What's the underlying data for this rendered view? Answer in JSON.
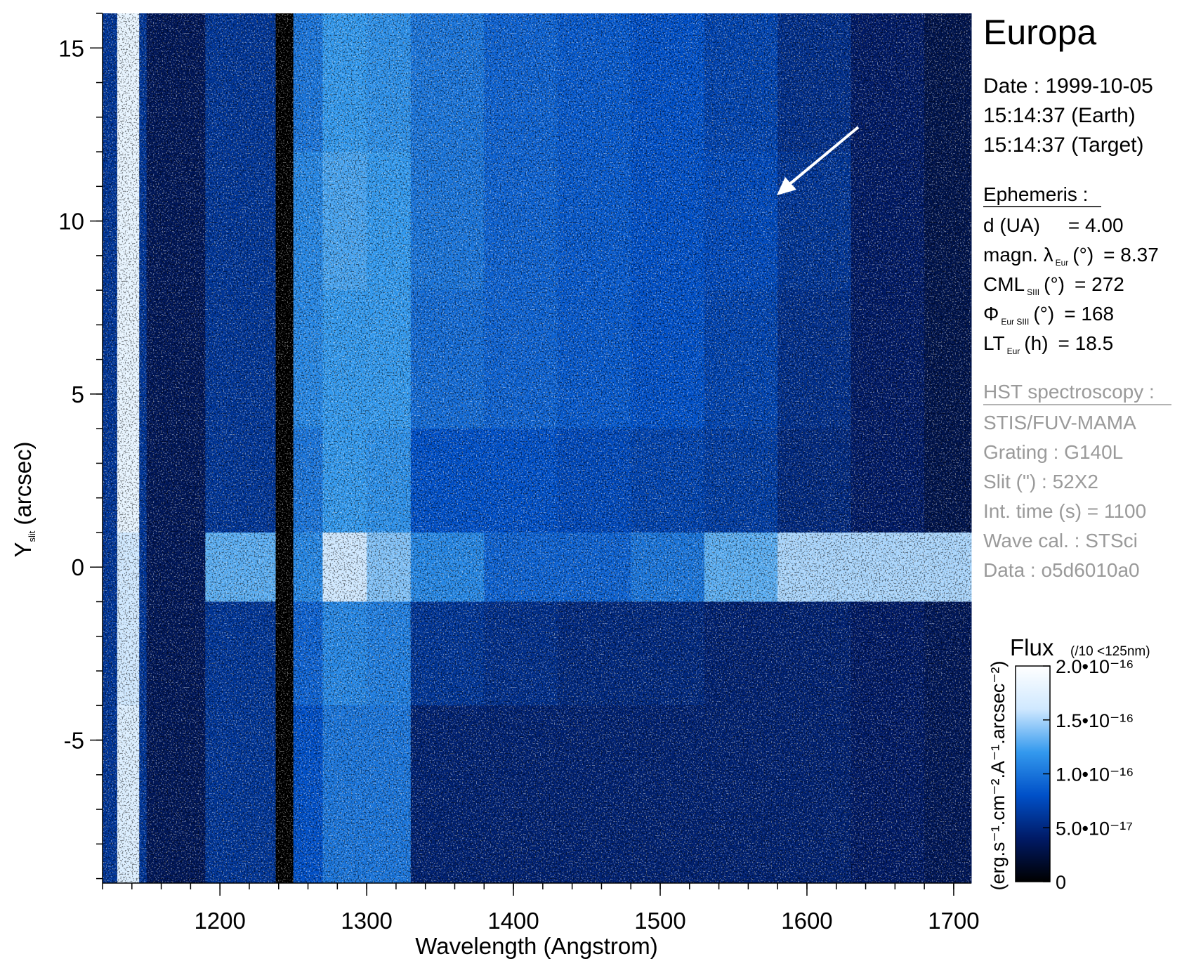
{
  "chart_data": {
    "type": "heatmap",
    "title": "Europa",
    "xlabel": "Wavelength (Angstrom)",
    "ylabel": {
      "main": "Y",
      "sub": "slit",
      "rest": "(arcsec)"
    },
    "xlim": [
      1120,
      1712
    ],
    "ylim": [
      -9.13,
      16
    ],
    "xticks": [
      1200,
      1300,
      1400,
      1500,
      1600,
      1700
    ],
    "yticks": [
      -5,
      0,
      5,
      10,
      15
    ],
    "x_minor_step": 20,
    "y_minor_step": 1,
    "xbins": [
      1120,
      1130,
      1145,
      1150,
      1190,
      1238,
      1250,
      1270,
      1300,
      1330,
      1380,
      1430,
      1480,
      1530,
      1580,
      1630,
      1680,
      1712
    ],
    "ybins": [
      16,
      12,
      8,
      4,
      1,
      -1,
      -4,
      -9.13
    ],
    "z": [
      [
        6e-17,
        1.8e-16,
        6e-17,
        3.5e-17,
        6e-17,
        0,
        1e-16,
        1.2e-16,
        1.15e-16,
        1e-16,
        9e-17,
        8.5e-17,
        8e-17,
        7e-17,
        5.5e-17,
        4e-17,
        3e-17
      ],
      [
        6e-17,
        1.8e-16,
        6e-17,
        3.5e-17,
        6e-17,
        0,
        1.1e-16,
        1.25e-16,
        1.2e-16,
        1e-16,
        9e-17,
        8.5e-17,
        8e-17,
        7.5e-17,
        6e-17,
        4e-17,
        3e-17
      ],
      [
        6e-17,
        1.8e-16,
        6e-17,
        3.5e-17,
        6e-17,
        0,
        1.1e-16,
        1.2e-16,
        1.2e-16,
        9.5e-17,
        9e-17,
        8.5e-17,
        8e-17,
        7e-17,
        5.5e-17,
        4e-17,
        3e-17
      ],
      [
        6e-17,
        1.8e-16,
        6e-17,
        3.5e-17,
        6e-17,
        0,
        1e-16,
        1.2e-16,
        1.15e-16,
        8e-17,
        8e-17,
        7.5e-17,
        7e-17,
        6.5e-17,
        5e-17,
        4e-17,
        3e-17
      ],
      [
        6e-17,
        1.6e-16,
        6e-17,
        3.5e-17,
        1.3e-16,
        0,
        1.1e-16,
        1.6e-16,
        1.4e-16,
        1.1e-16,
        9e-17,
        9e-17,
        1e-16,
        1.3e-16,
        1.5e-16,
        1.5e-16,
        1.5e-16
      ],
      [
        6e-17,
        1.6e-16,
        6e-17,
        3.5e-17,
        6e-17,
        0,
        9e-17,
        1.1e-16,
        1.05e-16,
        6e-17,
        5.5e-17,
        5e-17,
        5e-17,
        4.5e-17,
        4.5e-17,
        4e-17,
        3.5e-17
      ],
      [
        6e-17,
        1.7e-16,
        6e-17,
        3.5e-17,
        6e-17,
        0,
        8e-17,
        1e-16,
        1e-16,
        4.5e-17,
        4.5e-17,
        4.5e-17,
        4.5e-17,
        4.5e-17,
        4.5e-17,
        4e-17,
        3.5e-17
      ]
    ],
    "colormap": [
      "#000000",
      "#001a66",
      "#0050c8",
      "#3399ee",
      "#cfe8ff",
      "#ffffff"
    ],
    "colorbar": {
      "title": "Flux",
      "note": "(/10 <125nm)",
      "label": "(erg.s⁻¹.cm⁻².A⁻¹.arcsec⁻²)",
      "lim": [
        0,
        2e-16
      ],
      "ticks": [
        0,
        {
          "value": 5e-17,
          "label": "5.0•10⁻¹⁷"
        },
        {
          "value": 1e-16,
          "label": "1.0•10⁻¹⁶"
        },
        {
          "value": 1.5e-16,
          "label": "1.5•10⁻¹⁶"
        },
        {
          "value": 2e-16,
          "label": "2.0•10⁻¹⁶"
        }
      ]
    }
  },
  "panel": {
    "date": [
      "Date : 1999-10-05",
      "15:14:37 (Earth)",
      "15:14:37 (Target)"
    ],
    "ephemeris": {
      "title": "Ephemeris :",
      "rows": [
        {
          "label": "d (UA)",
          "value": "= 4.00"
        },
        {
          "label": "magn. λ",
          "sub": "Eur",
          "unit": "(°)",
          "value": "= 8.37"
        },
        {
          "label": "CML",
          "sub": "SIII",
          "unit": "(°)",
          "value": "= 272"
        },
        {
          "label": "Φ",
          "sub": "Eur SIII",
          "unit": "(°)",
          "value": "= 168"
        },
        {
          "label": "LT",
          "sub": "Eur",
          "unit": "(h)",
          "value": "= 18.5"
        }
      ]
    },
    "hst": {
      "title": "HST spectroscopy :",
      "rows": [
        "STIS/FUV-MAMA",
        "Grating : G140L",
        "Slit (\") : 52X2",
        "Int. time (s) = 1100",
        "Wave cal. : STSci",
        "Data : o5d6010a0"
      ]
    }
  }
}
